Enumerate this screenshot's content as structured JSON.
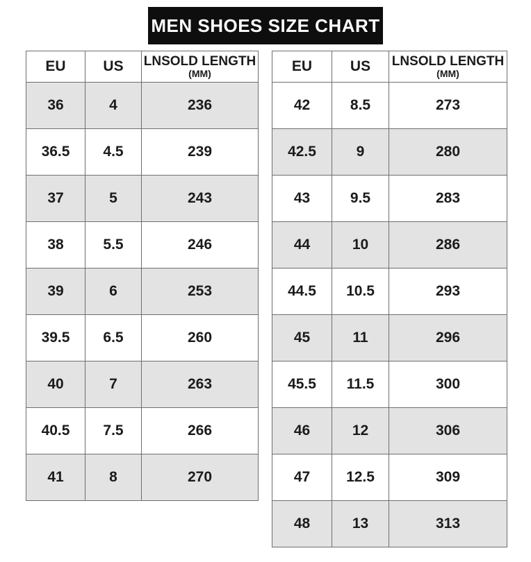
{
  "title": "MEN SHOES SIZE CHART",
  "columns": {
    "eu": "EU",
    "us": "US",
    "length_line1": "LNSOLD LENGTH",
    "length_line2": "(MM)"
  },
  "left_table": {
    "rows": [
      [
        "36",
        "4",
        "236"
      ],
      [
        "36.5",
        "4.5",
        "239"
      ],
      [
        "37",
        "5",
        "243"
      ],
      [
        "38",
        "5.5",
        "246"
      ],
      [
        "39",
        "6",
        "253"
      ],
      [
        "39.5",
        "6.5",
        "260"
      ],
      [
        "40",
        "7",
        "263"
      ],
      [
        "40.5",
        "7.5",
        "266"
      ],
      [
        "41",
        "8",
        "270"
      ]
    ]
  },
  "right_table": {
    "rows": [
      [
        "42",
        "8.5",
        "273"
      ],
      [
        "42.5",
        "9",
        "280"
      ],
      [
        "43",
        "9.5",
        "283"
      ],
      [
        "44",
        "10",
        "286"
      ],
      [
        "44.5",
        "10.5",
        "293"
      ],
      [
        "45",
        "11",
        "296"
      ],
      [
        "45.5",
        "11.5",
        "300"
      ],
      [
        "46",
        "12",
        "306"
      ],
      [
        "47",
        "12.5",
        "309"
      ],
      [
        "48",
        "13",
        "313"
      ]
    ]
  },
  "colors": {
    "banner_bg": "#0e0e0e",
    "banner_text": "#ffffff",
    "row_shade": "#e3e3e3",
    "border": "#6e6e6e",
    "text": "#1b1b1b"
  },
  "chart_data": [
    {
      "type": "table",
      "title": "MEN SHOES SIZE CHART",
      "columns": [
        "EU",
        "US",
        "LNSOLD LENGTH (MM)"
      ],
      "rows": [
        [
          36,
          4,
          236
        ],
        [
          36.5,
          4.5,
          239
        ],
        [
          37,
          5,
          243
        ],
        [
          38,
          5.5,
          246
        ],
        [
          39,
          6,
          253
        ],
        [
          39.5,
          6.5,
          260
        ],
        [
          40,
          7,
          263
        ],
        [
          40.5,
          7.5,
          266
        ],
        [
          41,
          8,
          270
        ]
      ]
    },
    {
      "type": "table",
      "title": "MEN SHOES SIZE CHART",
      "columns": [
        "EU",
        "US",
        "LNSOLD LENGTH (MM)"
      ],
      "rows": [
        [
          42,
          8.5,
          273
        ],
        [
          42.5,
          9,
          280
        ],
        [
          43,
          9.5,
          283
        ],
        [
          44,
          10,
          286
        ],
        [
          44.5,
          10.5,
          293
        ],
        [
          45,
          11,
          296
        ],
        [
          45.5,
          11.5,
          300
        ],
        [
          46,
          12,
          306
        ],
        [
          47,
          12.5,
          309
        ],
        [
          48,
          13,
          313
        ]
      ]
    }
  ]
}
